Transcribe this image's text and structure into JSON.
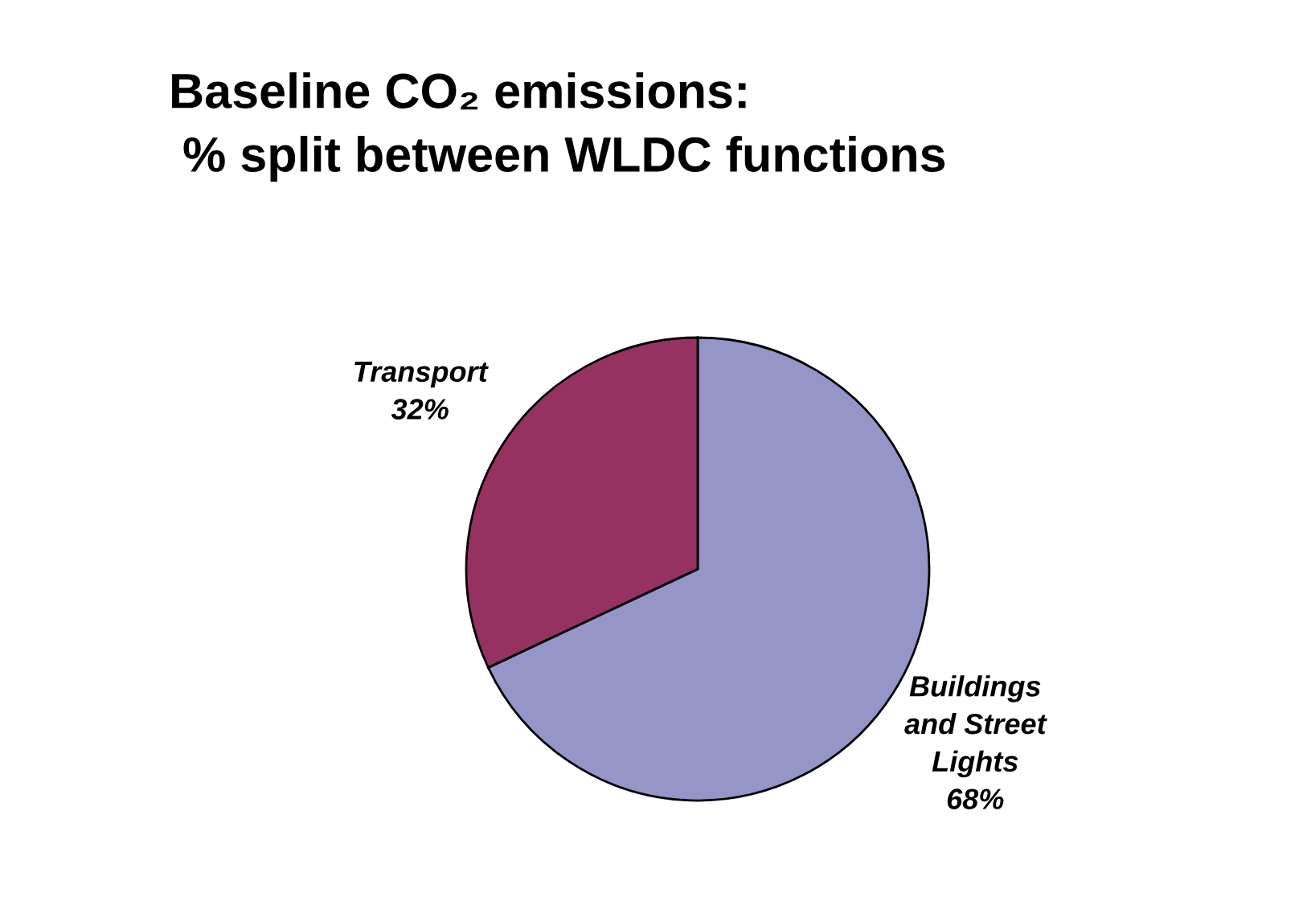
{
  "chart_data": {
    "type": "pie",
    "title": "Baseline CO₂ emissions:\n % split between WLDC functions",
    "categories": [
      "Buildings\nand Street\nLights",
      "Transport"
    ],
    "values": [
      68,
      32
    ],
    "value_labels": [
      "68%",
      "32%"
    ],
    "colors": [
      "#9595c8",
      "#953262"
    ],
    "legend": false
  }
}
